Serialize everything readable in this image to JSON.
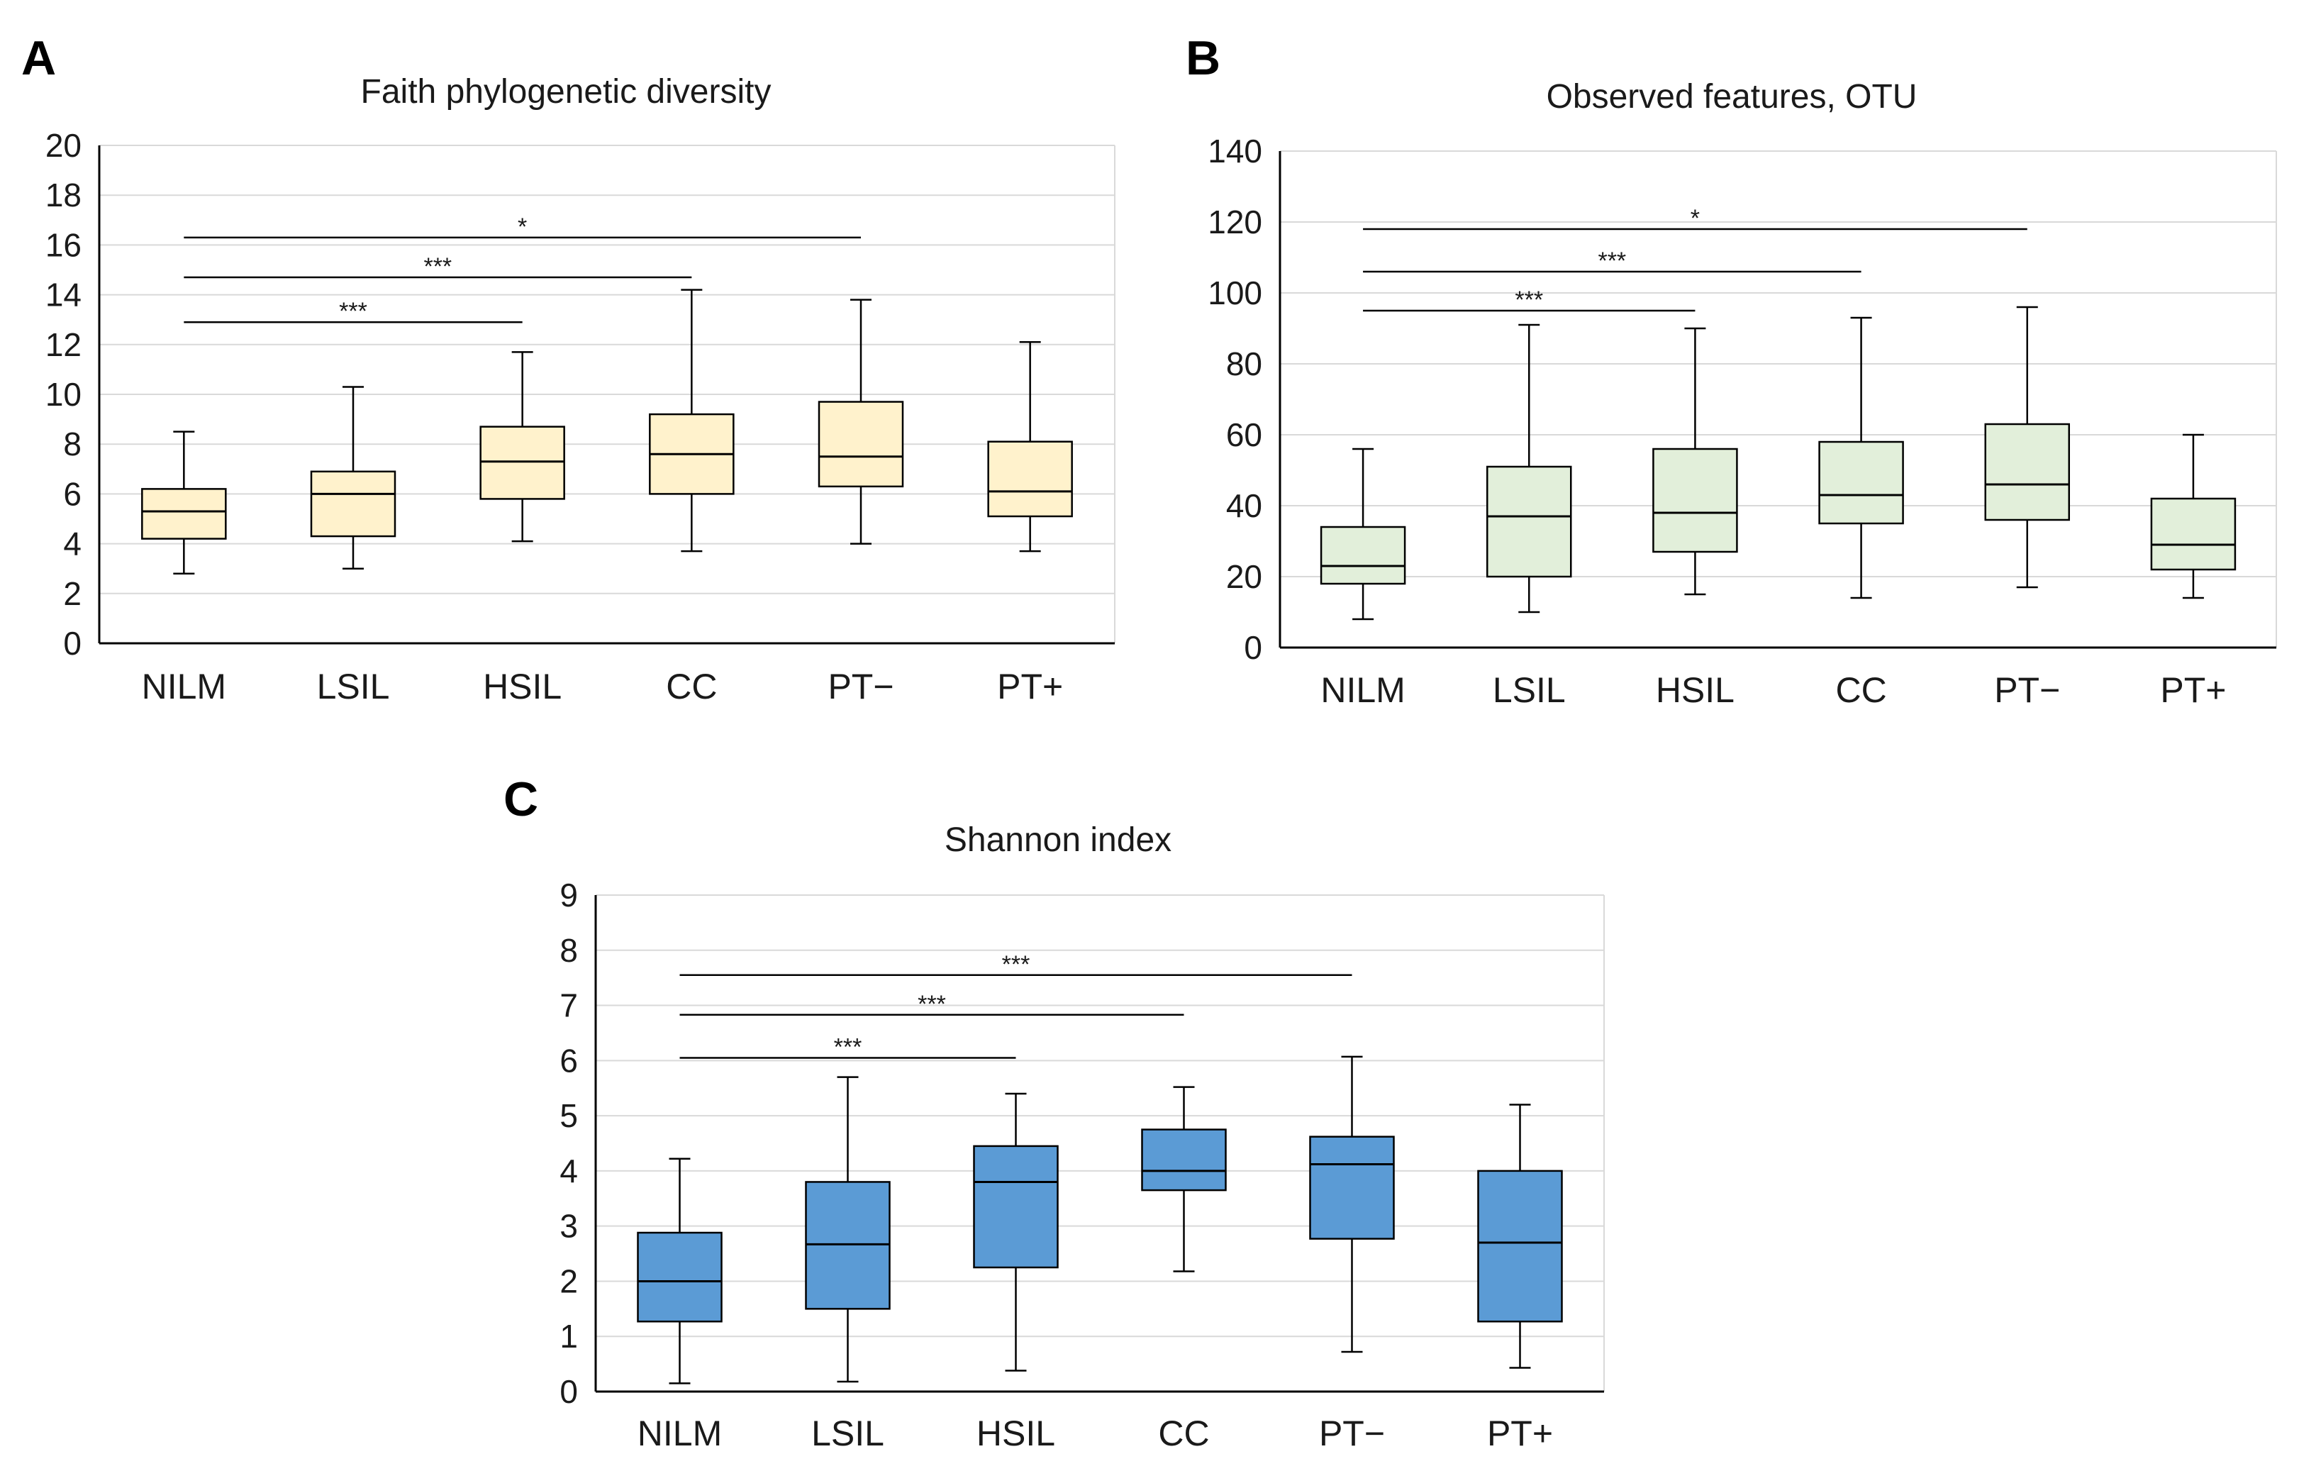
{
  "chart_data": [
    {
      "panel": "A",
      "type": "box",
      "title": "Faith phylogenetic diversity",
      "categories": [
        "NILM",
        "LSIL",
        "HSIL",
        "CC",
        "PT−",
        "PT+"
      ],
      "ylim": [
        0,
        20
      ],
      "yticks": [
        0,
        2,
        4,
        6,
        8,
        10,
        12,
        14,
        16,
        18,
        20
      ],
      "fill": "#fff2cc",
      "boxes": [
        {
          "min": 2.8,
          "q1": 4.2,
          "median": 5.3,
          "q3": 6.2,
          "max": 8.5
        },
        {
          "min": 3.0,
          "q1": 4.3,
          "median": 6.0,
          "q3": 6.9,
          "max": 10.3
        },
        {
          "min": 4.1,
          "q1": 5.8,
          "median": 7.3,
          "q3": 8.7,
          "max": 11.7
        },
        {
          "min": 3.7,
          "q1": 6.0,
          "median": 7.6,
          "q3": 9.2,
          "max": 14.2
        },
        {
          "min": 4.0,
          "q1": 6.3,
          "median": 7.5,
          "q3": 9.7,
          "max": 13.8
        },
        {
          "min": 3.7,
          "q1": 5.1,
          "median": 6.1,
          "q3": 8.1,
          "max": 12.1
        }
      ],
      "significance": [
        {
          "from": 0,
          "to": 2,
          "y": 12.9,
          "label": "***"
        },
        {
          "from": 0,
          "to": 3,
          "y": 14.7,
          "label": "***"
        },
        {
          "from": 0,
          "to": 4,
          "y": 16.3,
          "label": "*"
        }
      ]
    },
    {
      "panel": "B",
      "type": "box",
      "title": "Observed features, OTU",
      "categories": [
        "NILM",
        "LSIL",
        "HSIL",
        "CC",
        "PT−",
        "PT+"
      ],
      "ylim": [
        0,
        140
      ],
      "yticks": [
        0,
        20,
        40,
        60,
        80,
        100,
        120,
        140
      ],
      "fill": "#e2efda",
      "boxes": [
        {
          "min": 8,
          "q1": 18,
          "median": 23,
          "q3": 34,
          "max": 56
        },
        {
          "min": 10,
          "q1": 20,
          "median": 37,
          "q3": 51,
          "max": 91
        },
        {
          "min": 15,
          "q1": 27,
          "median": 38,
          "q3": 56,
          "max": 90
        },
        {
          "min": 14,
          "q1": 35,
          "median": 43,
          "q3": 58,
          "max": 93
        },
        {
          "min": 17,
          "q1": 36,
          "median": 46,
          "q3": 63,
          "max": 96
        },
        {
          "min": 14,
          "q1": 22,
          "median": 29,
          "q3": 42,
          "max": 60
        }
      ],
      "significance": [
        {
          "from": 0,
          "to": 2,
          "y": 95,
          "label": "***"
        },
        {
          "from": 0,
          "to": 3,
          "y": 106,
          "label": "***"
        },
        {
          "from": 0,
          "to": 4,
          "y": 118,
          "label": "*"
        }
      ]
    },
    {
      "panel": "C",
      "type": "box",
      "title": "Shannon index",
      "categories": [
        "NILM",
        "LSIL",
        "HSIL",
        "CC",
        "PT−",
        "PT+"
      ],
      "ylim": [
        0,
        9
      ],
      "yticks": [
        0,
        1,
        2,
        3,
        4,
        5,
        6,
        7,
        8,
        9
      ],
      "fill": "#5b9bd5",
      "boxes": [
        {
          "min": 0.15,
          "q1": 1.27,
          "median": 2.0,
          "q3": 2.88,
          "max": 4.22
        },
        {
          "min": 0.18,
          "q1": 1.5,
          "median": 2.67,
          "q3": 3.8,
          "max": 5.7
        },
        {
          "min": 0.38,
          "q1": 2.25,
          "median": 3.8,
          "q3": 4.45,
          "max": 5.4
        },
        {
          "min": 2.18,
          "q1": 3.65,
          "median": 4.0,
          "q3": 4.75,
          "max": 5.52
        },
        {
          "min": 0.72,
          "q1": 2.77,
          "median": 4.12,
          "q3": 4.62,
          "max": 6.07
        },
        {
          "min": 0.43,
          "q1": 1.27,
          "median": 2.7,
          "q3": 4.0,
          "max": 5.2
        }
      ],
      "significance": [
        {
          "from": 0,
          "to": 2,
          "y": 6.05,
          "label": "***"
        },
        {
          "from": 0,
          "to": 3,
          "y": 6.83,
          "label": "***"
        },
        {
          "from": 0,
          "to": 4,
          "y": 7.55,
          "label": "***"
        }
      ]
    }
  ]
}
